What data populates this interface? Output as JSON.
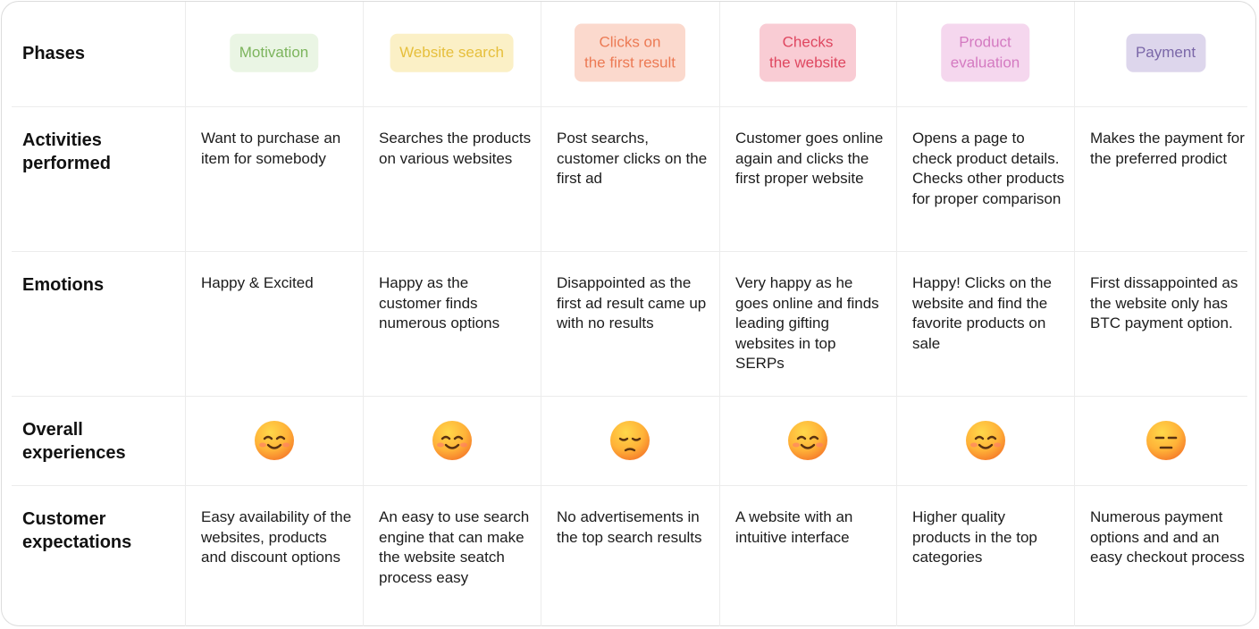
{
  "phases_label": "Phases",
  "phases": [
    {
      "lines": [
        "Motivation"
      ],
      "background": "#eaf5e4",
      "color": "#7cb45c"
    },
    {
      "lines": [
        "Website search"
      ],
      "background": "#fbf0c6",
      "color": "#e6bf3c"
    },
    {
      "lines": [
        "Clicks on",
        "the first result"
      ],
      "background": "#fbd9cd",
      "color": "#ec7a54"
    },
    {
      "lines": [
        "Checks",
        "the website"
      ],
      "background": "#f9ccd4",
      "color": "#df4760"
    },
    {
      "lines": [
        "Product",
        "evaluation"
      ],
      "background": "#f5d7ee",
      "color": "#d47ac1"
    },
    {
      "lines": [
        "Payment"
      ],
      "background": "#ddd6ec",
      "color": "#7a67a8"
    }
  ],
  "rows": [
    {
      "label": "Activities performed",
      "cells": [
        "Want to purchase an item for somebody",
        "Searches the products on various websites",
        "Post searchs, customer clicks on the first ad",
        "Customer goes online again and clicks the first proper website",
        "Opens a page to check product details. Checks other products for proper comparison",
        "Makes the payment for the preferred prodict"
      ]
    },
    {
      "label": "Emotions",
      "cells": [
        "Happy & Excited",
        "Happy as the customer finds numerous options",
        "Disappointed as the first ad result came up with no results",
        "Very happy as he goes online and finds leading gifting websites in top SERPs",
        "Happy! Clicks on the website and find the favorite products on sale",
        "First dissappointed as the website only has BTC payment option."
      ]
    },
    {
      "label": "Overall experiences"
    },
    {
      "label": "Customer expectations",
      "cells": [
        "Easy availability of the websites, products and discount options",
        "An easy to use search engine that can make the website seatch process easy",
        "No advertisements in the top search results",
        "A website with an intuitive interface",
        "Higher quality products in the top categories",
        "Numerous payment options and and an easy checkout process"
      ]
    }
  ]
}
